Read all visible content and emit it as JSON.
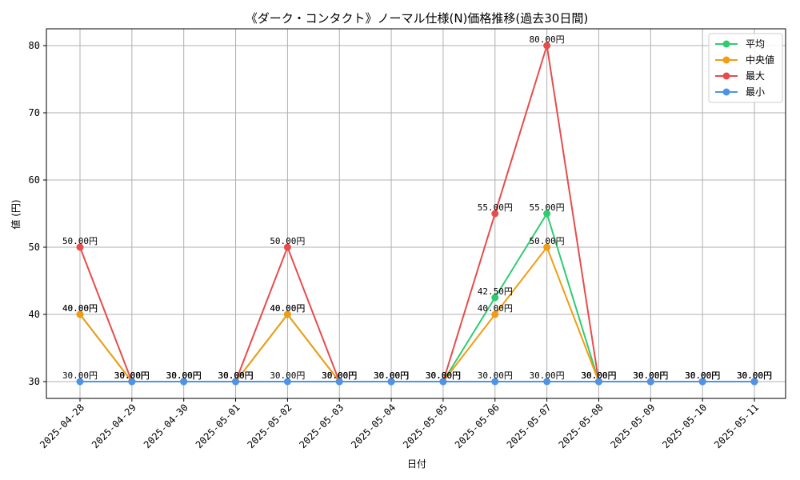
{
  "chart_data": {
    "type": "line",
    "title": "《ダーク・コンタクト》ノーマル仕様(N)価格推移(過去30日間)",
    "xlabel": "日付",
    "ylabel": "値 (円)",
    "ylim": [
      27.5,
      82.5
    ],
    "yticks": [
      30,
      40,
      50,
      60,
      70,
      80
    ],
    "ytick_labels": [
      "30",
      "40",
      "50",
      "60",
      "70",
      "80"
    ],
    "grid": true,
    "legend_position": "top-right",
    "categories": [
      "2025-04-28",
      "2025-04-29",
      "2025-04-30",
      "2025-05-01",
      "2025-05-02",
      "2025-05-03",
      "2025-05-04",
      "2025-05-05",
      "2025-05-06",
      "2025-05-07",
      "2025-05-08",
      "2025-05-09",
      "2025-05-10",
      "2025-05-11"
    ],
    "series": [
      {
        "name": "平均",
        "color": "#2ecc71",
        "values": [
          40,
          30,
          30,
          30,
          40,
          30,
          30,
          30,
          42.5,
          55,
          30,
          30,
          30,
          30
        ],
        "labels": [
          "40.00円",
          "30.00円",
          "30.00円",
          "30.00円",
          "40.00円",
          "30.00円",
          "30.00円",
          "30.00円",
          "42.50円",
          "55.00円",
          "30.00円",
          "30.00円",
          "30.00円",
          "30.00円"
        ]
      },
      {
        "name": "中央値",
        "color": "#f39c12",
        "values": [
          40,
          30,
          30,
          30,
          40,
          30,
          30,
          30,
          40,
          50,
          30,
          30,
          30,
          30
        ],
        "labels": [
          "40.00円",
          "30.00円",
          "30.00円",
          "30.00円",
          "40.00円",
          "30.00円",
          "30.00円",
          "30.00円",
          "40.00円",
          "50.00円",
          "30.00円",
          "30.00円",
          "30.00円",
          "30.00円"
        ]
      },
      {
        "name": "最大",
        "color": "#e74c4c",
        "values": [
          50,
          30,
          30,
          30,
          50,
          30,
          30,
          30,
          55,
          80,
          30,
          30,
          30,
          30
        ],
        "labels": [
          "50.00円",
          "30.00円",
          "30.00円",
          "30.00円",
          "50.00円",
          "30.00円",
          "30.00円",
          "30.00円",
          "55.00円",
          "80.00円",
          "30.00円",
          "30.00円",
          "30.00円",
          "30.00円"
        ]
      },
      {
        "name": "最小",
        "color": "#4d94e8",
        "values": [
          30,
          30,
          30,
          30,
          30,
          30,
          30,
          30,
          30,
          30,
          30,
          30,
          30,
          30
        ],
        "labels": [
          "30.00円",
          "30.00円",
          "30.00円",
          "30.00円",
          "30.00円",
          "30.00円",
          "30.00円",
          "30.00円",
          "30.00円",
          "30.00円",
          "30.00円",
          "30.00円",
          "30.00円",
          "30.00円"
        ]
      }
    ]
  }
}
